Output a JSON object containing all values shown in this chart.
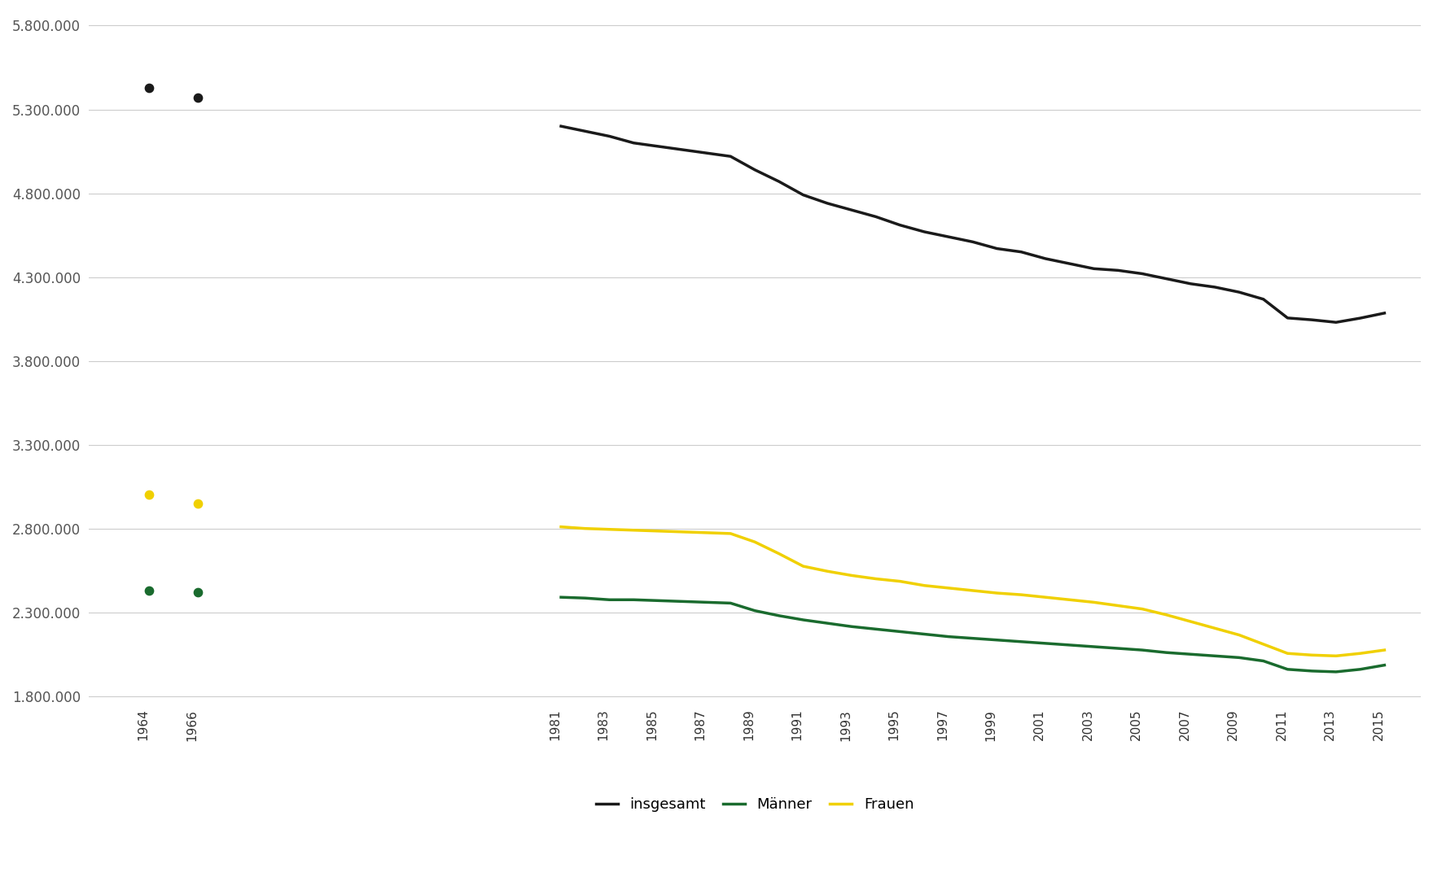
{
  "isolated_years": [
    1964,
    1966
  ],
  "insgesamt_isolated": [
    5430000,
    5370000
  ],
  "maenner_isolated": [
    2430000,
    2420000
  ],
  "frauen_isolated": [
    3000000,
    2950000
  ],
  "years": [
    1981,
    1982,
    1983,
    1984,
    1985,
    1986,
    1987,
    1988,
    1989,
    1990,
    1991,
    1992,
    1993,
    1994,
    1995,
    1996,
    1997,
    1998,
    1999,
    2000,
    2001,
    2002,
    2003,
    2004,
    2005,
    2006,
    2007,
    2008,
    2009,
    2010,
    2011,
    2012,
    2013,
    2014,
    2015
  ],
  "insgesamt": [
    5200000,
    5170000,
    5140000,
    5100000,
    5080000,
    5060000,
    5040000,
    5020000,
    4940000,
    4870000,
    4790000,
    4740000,
    4700000,
    4660000,
    4610000,
    4570000,
    4540000,
    4510000,
    4470000,
    4450000,
    4410000,
    4380000,
    4350000,
    4340000,
    4320000,
    4290000,
    4260000,
    4240000,
    4210000,
    4168000,
    4056000,
    4045000,
    4030000,
    4055000,
    4085000
  ],
  "maenner": [
    2390000,
    2385000,
    2375000,
    2375000,
    2370000,
    2365000,
    2360000,
    2355000,
    2310000,
    2280000,
    2255000,
    2235000,
    2215000,
    2200000,
    2185000,
    2170000,
    2155000,
    2145000,
    2135000,
    2125000,
    2115000,
    2105000,
    2095000,
    2085000,
    2075000,
    2060000,
    2050000,
    2040000,
    2030000,
    2010000,
    1960000,
    1950000,
    1945000,
    1960000,
    1985000
  ],
  "frauen": [
    2810000,
    2800000,
    2795000,
    2790000,
    2785000,
    2780000,
    2775000,
    2770000,
    2720000,
    2650000,
    2575000,
    2545000,
    2520000,
    2500000,
    2485000,
    2460000,
    2445000,
    2430000,
    2415000,
    2405000,
    2390000,
    2375000,
    2360000,
    2340000,
    2320000,
    2285000,
    2245000,
    2205000,
    2165000,
    2110000,
    2055000,
    2045000,
    2040000,
    2055000,
    2075000
  ],
  "color_insgesamt": "#1a1a1a",
  "color_maenner": "#1a6b2e",
  "color_frauen": "#f0d000",
  "ylim_min": 1800000,
  "ylim_max": 5800000,
  "ytick_step": 500000,
  "xlabel_rotation": 90,
  "grid_color": "#cccccc",
  "bg_color": "#ffffff",
  "legend_labels": [
    "insgesamt",
    "Männer",
    "Frauen"
  ],
  "line_width": 2.5,
  "dot_size": 55
}
